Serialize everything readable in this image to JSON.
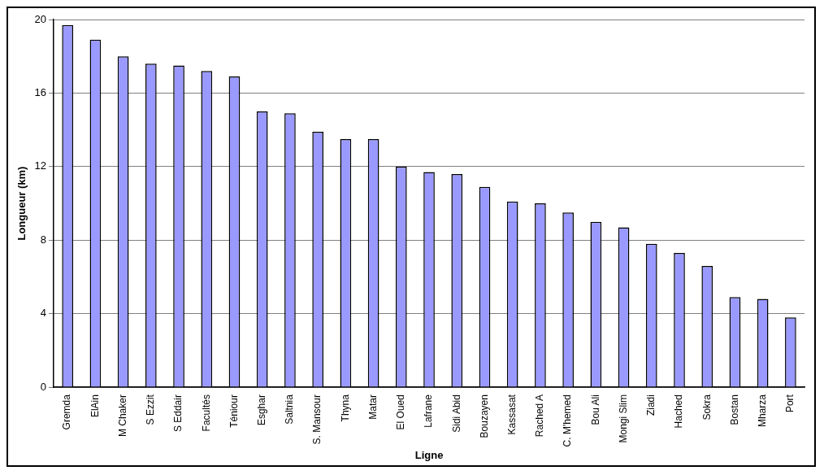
{
  "chart_data": {
    "type": "bar",
    "xlabel": "Ligne",
    "ylabel": "Longueur (km)",
    "categories": [
      "Gremda",
      "ElAin",
      "M Chaker",
      "S Ezzit",
      "S Eddair",
      "Facultés",
      "Téniour",
      "Esghar",
      "Saltnia",
      "S. Mansour",
      "Thyna",
      "Matar",
      "El Oued",
      "Lafrane",
      "Sidi Abid",
      "Bouzayen",
      "Kassasat",
      "Rached A",
      "C. M'hemed",
      "Bou Ali",
      "Mongi Slim",
      "Ziadi",
      "Hached",
      "Sokra",
      "Bostan",
      "Mharza",
      "Port"
    ],
    "values": [
      19.7,
      18.9,
      18.0,
      17.6,
      17.5,
      17.2,
      16.9,
      15.0,
      14.9,
      13.9,
      13.5,
      13.5,
      12.0,
      11.7,
      11.6,
      10.9,
      10.1,
      10.0,
      9.5,
      9.0,
      8.7,
      7.8,
      7.3,
      6.6,
      4.9,
      4.8,
      3.8
    ],
    "color": "#9999ff",
    "ylim": [
      0,
      20
    ],
    "yticks": [
      0,
      4,
      8,
      12,
      16,
      20
    ],
    "grid": "y"
  }
}
